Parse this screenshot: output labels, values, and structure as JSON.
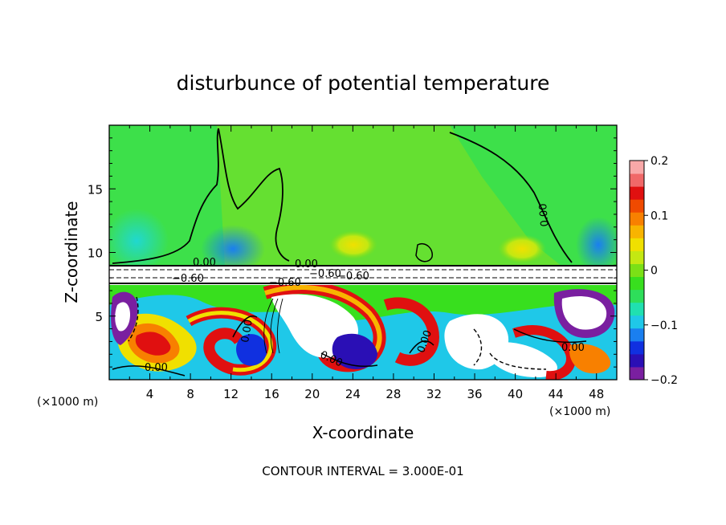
{
  "chart_data": {
    "type": "heatmap",
    "title": "disturbunce of potential temperature",
    "xlabel": "X-coordinate",
    "ylabel": "Z-coordinate",
    "x_unit_left": "(×1000 m)",
    "x_unit_right": "(×1000 m)",
    "xlim": [
      0,
      50
    ],
    "ylim": [
      0,
      20
    ],
    "x_ticks": [
      4,
      8,
      12,
      16,
      20,
      24,
      28,
      32,
      36,
      40,
      44,
      48
    ],
    "y_ticks": [
      5,
      10,
      15
    ],
    "colorbar": {
      "vmin": -0.2,
      "vmax": 0.2,
      "tick_values": [
        0.2,
        0.1,
        0,
        -0.1,
        -0.2
      ],
      "tick_labels": [
        "0.2",
        "0.1",
        "0",
        "−0.1",
        "−0.2"
      ],
      "colors": [
        "#7a1fa0",
        "#2a0fb5",
        "#1030e0",
        "#1a7ff0",
        "#1fc8e8",
        "#20e0b0",
        "#2ede5a",
        "#38df1e",
        "#7be016",
        "#c4e812",
        "#f0e000",
        "#f8b400",
        "#f88000",
        "#f04a00",
        "#e01010",
        "#f06868",
        "#f8a8a8"
      ]
    },
    "contour_labels": [
      "0.00",
      "0.00",
      "0.00",
      "0.00",
      "0.00",
      "0.00",
      "0.00",
      "0.00",
      "−0.60",
      "−0.60",
      "−0.60",
      "−0.60"
    ],
    "footer": "CONTOUR INTERVAL = 3.000E-01"
  }
}
